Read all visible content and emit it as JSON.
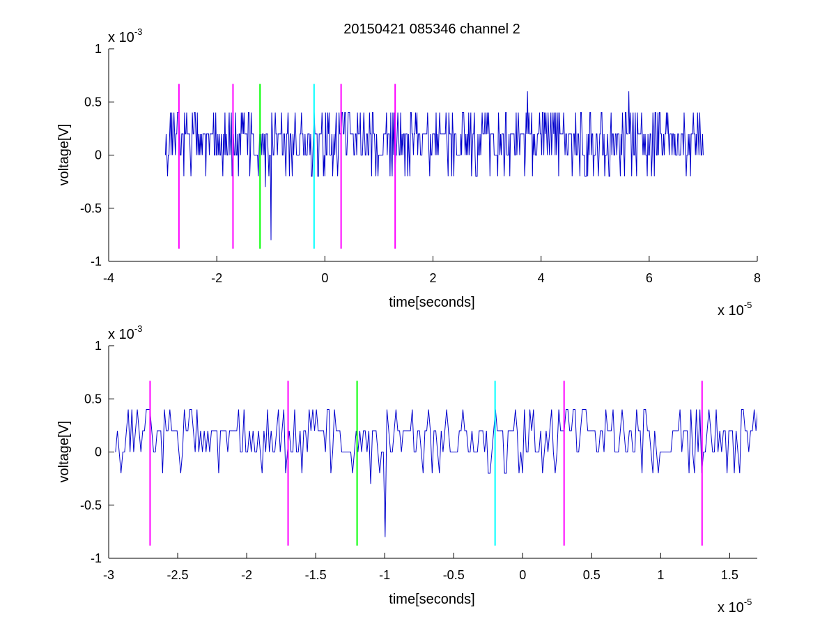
{
  "chart_data": {
    "title": "20150421 085346 channel 2",
    "colors": {
      "signal": "#0000cc",
      "magenta": "#ff00ff",
      "green": "#00ff00",
      "cyan": "#00ffff",
      "axis": "#000000"
    },
    "markers": [
      {
        "x": -2.7e-05,
        "color": "magenta"
      },
      {
        "x": -1.7e-05,
        "color": "magenta"
      },
      {
        "x": -1.2e-05,
        "color": "green"
      },
      {
        "x": -2e-06,
        "color": "cyan"
      },
      {
        "x": 3e-06,
        "color": "magenta"
      },
      {
        "x": 1.3e-05,
        "color": "magenta"
      }
    ],
    "marker_y_range": [
      -0.00088,
      0.00067
    ],
    "signal": {
      "t_start": -2.95e-05,
      "t_end": 7e-05,
      "levels": [
        -0.0002,
        0,
        0.0002,
        0.0004
      ],
      "spikes": [
        {
          "x": -1e-05,
          "y": -0.0008
        },
        {
          "x": -1.1e-05,
          "y": -0.0003
        },
        {
          "x": 3.75e-05,
          "y": 0.0006
        },
        {
          "x": 5.62e-05,
          "y": 0.0006
        }
      ]
    },
    "panels": [
      {
        "type": "line",
        "xlabel": "time[seconds]",
        "ylabel": "voltage[V]",
        "xlim": [
          -4e-05,
          8e-05
        ],
        "ylim": [
          -0.001,
          0.001
        ],
        "xticks": [
          "-4",
          "-2",
          "0",
          "2",
          "4",
          "6",
          "8"
        ],
        "yticks": [
          "-1",
          "-0.5",
          "0",
          "0.5",
          "1"
        ],
        "x_exponent": "x 10",
        "x_exponent_power": "-5",
        "y_exponent": "x 10",
        "y_exponent_power": "-3"
      },
      {
        "type": "line",
        "xlabel": "time[seconds]",
        "ylabel": "voltage[V]",
        "xlim": [
          -3e-05,
          1.7e-05
        ],
        "ylim": [
          -0.001,
          0.001
        ],
        "xticks": [
          "-3",
          "-2.5",
          "-2",
          "-1.5",
          "-1",
          "-0.5",
          "0",
          "0.5",
          "1",
          "1.5"
        ],
        "yticks": [
          "-1",
          "-0.5",
          "0",
          "0.5",
          "1"
        ],
        "x_exponent": "x 10",
        "x_exponent_power": "-5",
        "y_exponent": "x 10",
        "y_exponent_power": "-3"
      }
    ]
  }
}
